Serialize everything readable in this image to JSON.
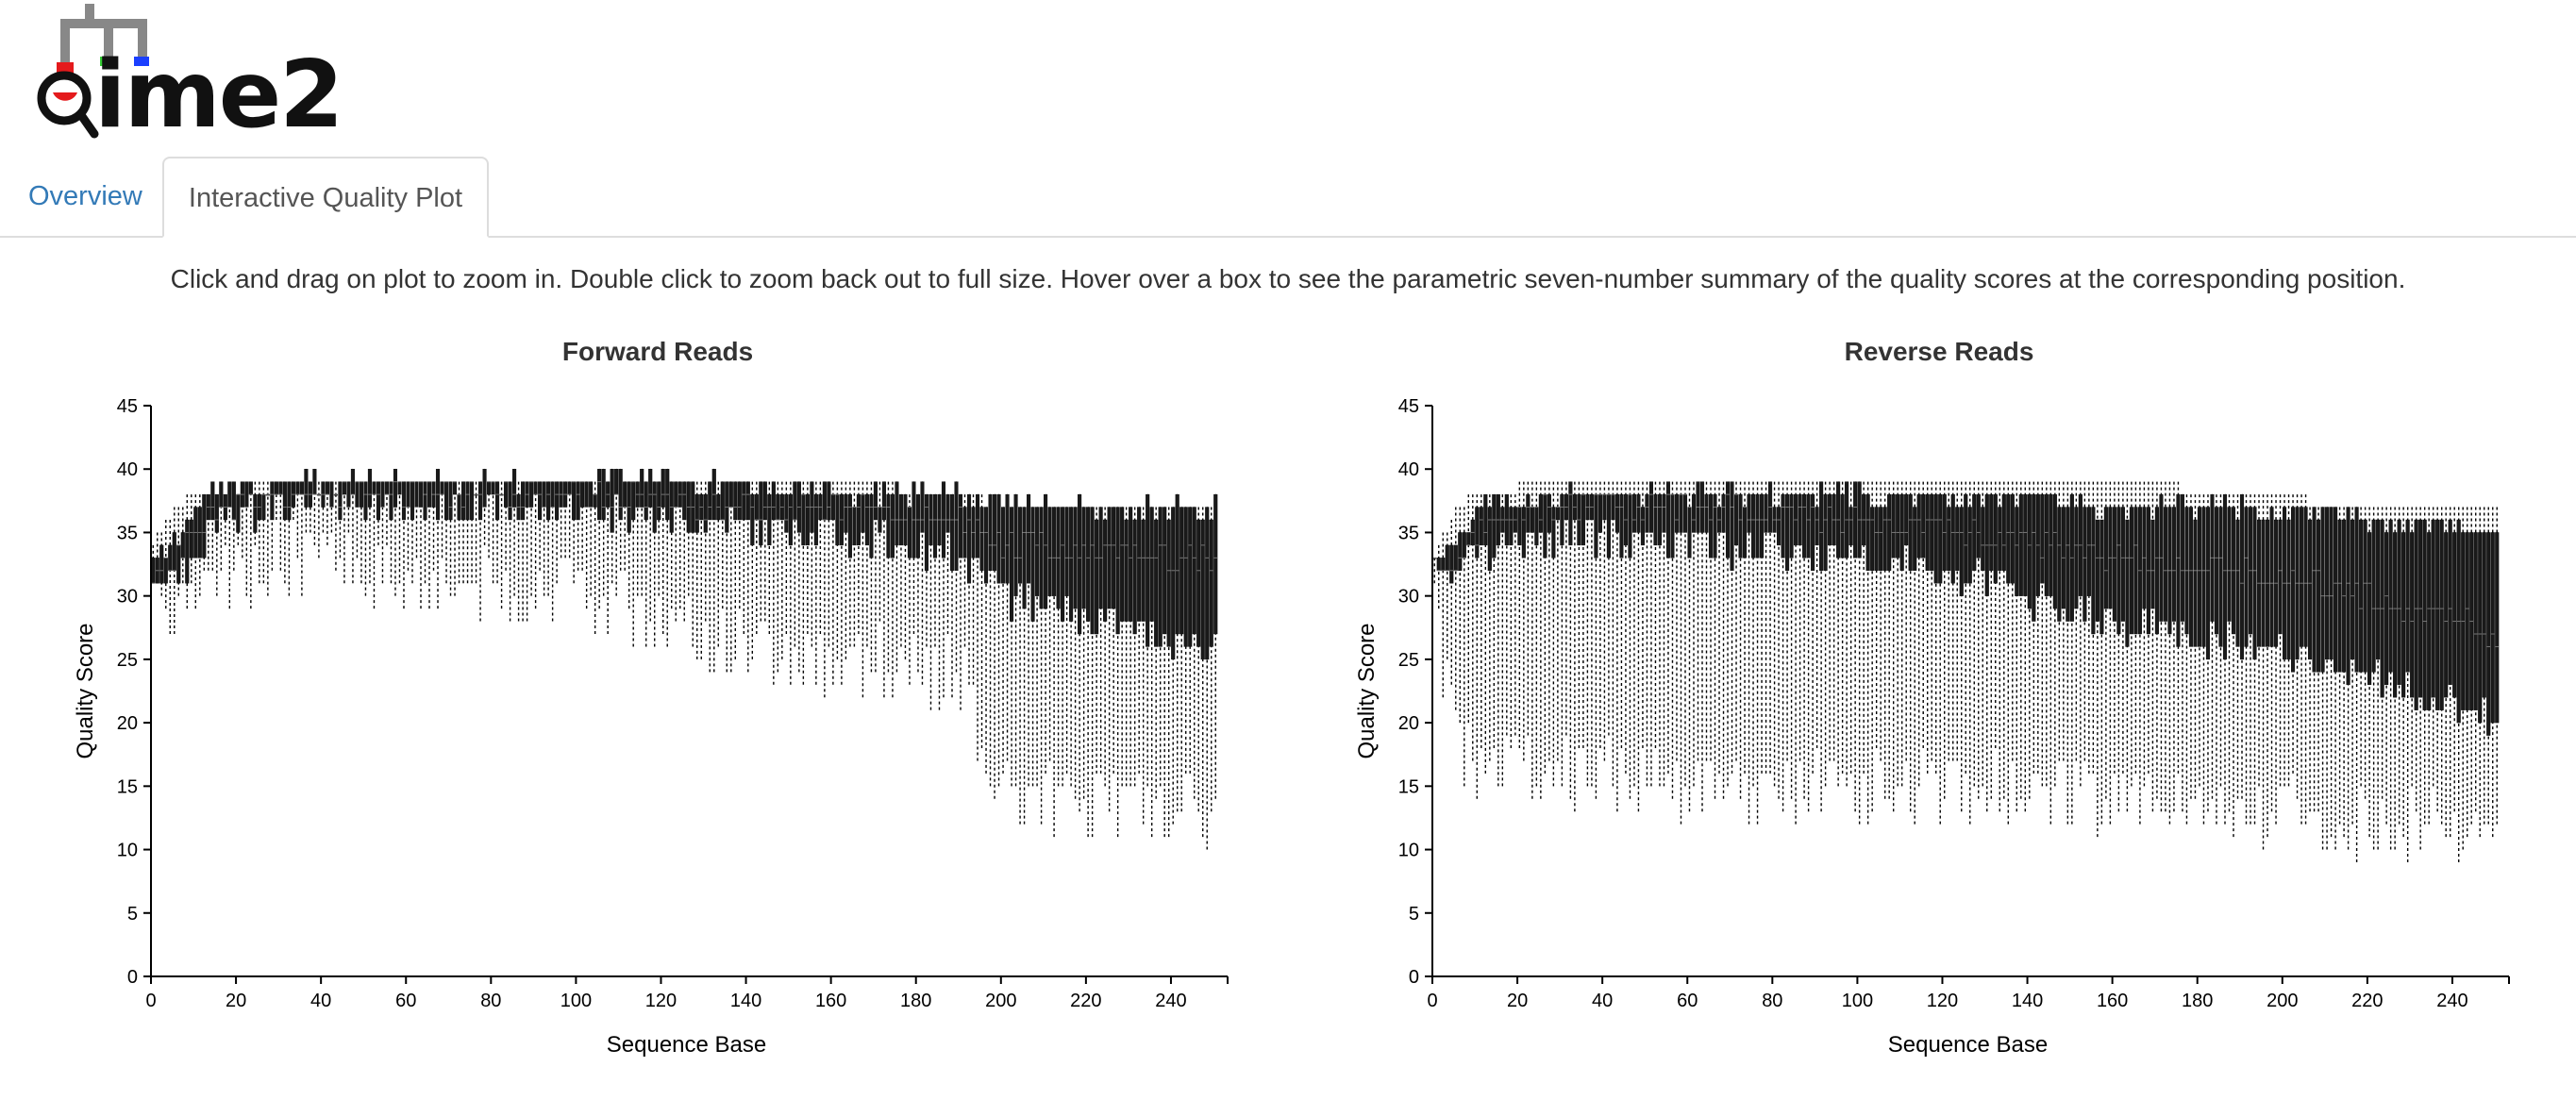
{
  "app": {
    "logo_text": "qiime2"
  },
  "tabs": [
    {
      "label": "Overview",
      "active": false
    },
    {
      "label": "Interactive Quality Plot",
      "active": true
    }
  ],
  "instructions": "Click and drag on plot to zoom in. Double click to zoom back out to full size. Hover over a box to see the parametric seven-number summary of the quality scores at the corresponding position.",
  "colors": {
    "link": "#337ab7",
    "box_fill": "#1a1a1a",
    "whisker": "#000000"
  },
  "chart_data": [
    {
      "type": "boxplot",
      "title": "Forward Reads",
      "xlabel": "Sequence Base",
      "ylabel": "Quality Score",
      "xlim": [
        0,
        250
      ],
      "ylim": [
        0,
        45
      ],
      "xticks": [
        "0",
        "20",
        "40",
        "60",
        "80",
        "100",
        "120",
        "140",
        "160",
        "180",
        "200",
        "220",
        "240"
      ],
      "yticks": [
        "0",
        "5",
        "10",
        "15",
        "20",
        "25",
        "30",
        "35",
        "40",
        "45"
      ],
      "profile": [
        {
          "x": 0,
          "whisker_low": 29,
          "q1": 32,
          "median": 32,
          "q3": 33,
          "whisker_high": 34
        },
        {
          "x": 5,
          "whisker_low": 30,
          "q1": 32,
          "median": 33,
          "q3": 34,
          "whisker_high": 37
        },
        {
          "x": 10,
          "whisker_low": 30,
          "q1": 33,
          "median": 35,
          "q3": 37,
          "whisker_high": 38
        },
        {
          "x": 15,
          "whisker_low": 31,
          "q1": 36,
          "median": 37,
          "q3": 38,
          "whisker_high": 38
        },
        {
          "x": 30,
          "whisker_low": 33,
          "q1": 37,
          "median": 38,
          "q3": 39,
          "whisker_high": 39
        },
        {
          "x": 60,
          "whisker_low": 32,
          "q1": 37,
          "median": 38,
          "q3": 39,
          "whisker_high": 39
        },
        {
          "x": 100,
          "whisker_low": 30,
          "q1": 37,
          "median": 38,
          "q3": 39,
          "whisker_high": 39
        },
        {
          "x": 130,
          "whisker_low": 27,
          "q1": 36,
          "median": 37,
          "q3": 39,
          "whisker_high": 39
        },
        {
          "x": 160,
          "whisker_low": 25,
          "q1": 35,
          "median": 37,
          "q3": 38,
          "whisker_high": 39
        },
        {
          "x": 190,
          "whisker_low": 24,
          "q1": 33,
          "median": 36,
          "q3": 38,
          "whisker_high": 38
        },
        {
          "x": 200,
          "whisker_low": 14,
          "q1": 30,
          "median": 34,
          "q3": 37,
          "whisker_high": 37
        },
        {
          "x": 251,
          "whisker_low": 13,
          "q1": 26,
          "median": 33,
          "q3": 37,
          "whisker_high": 37
        }
      ]
    },
    {
      "type": "boxplot",
      "title": "Reverse Reads",
      "xlabel": "Sequence Base",
      "ylabel": "Quality Score",
      "xlim": [
        0,
        250
      ],
      "ylim": [
        0,
        45
      ],
      "xticks": [
        "0",
        "20",
        "40",
        "60",
        "80",
        "100",
        "120",
        "140",
        "160",
        "180",
        "200",
        "220",
        "240"
      ],
      "yticks": [
        "0",
        "5",
        "10",
        "15",
        "20",
        "25",
        "30",
        "35",
        "40",
        "45"
      ],
      "profile": [
        {
          "x": 0,
          "whisker_low": 29,
          "q1": 32,
          "median": 32,
          "q3": 33,
          "whisker_high": 33
        },
        {
          "x": 5,
          "whisker_low": 18,
          "q1": 32,
          "median": 33,
          "q3": 34,
          "whisker_high": 37
        },
        {
          "x": 10,
          "whisker_low": 17,
          "q1": 33,
          "median": 35,
          "q3": 37,
          "whisker_high": 38
        },
        {
          "x": 30,
          "whisker_low": 16,
          "q1": 35,
          "median": 37,
          "q3": 38,
          "whisker_high": 39
        },
        {
          "x": 60,
          "whisker_low": 15,
          "q1": 34,
          "median": 37,
          "q3": 38,
          "whisker_high": 39
        },
        {
          "x": 100,
          "whisker_low": 15,
          "q1": 33,
          "median": 36,
          "q3": 38,
          "whisker_high": 39
        },
        {
          "x": 130,
          "whisker_low": 15,
          "q1": 31,
          "median": 35,
          "q3": 38,
          "whisker_high": 39
        },
        {
          "x": 160,
          "whisker_low": 14,
          "q1": 28,
          "median": 33,
          "q3": 37,
          "whisker_high": 39
        },
        {
          "x": 190,
          "whisker_low": 13,
          "q1": 26,
          "median": 32,
          "q3": 37,
          "whisker_high": 38
        },
        {
          "x": 220,
          "whisker_low": 12,
          "q1": 24,
          "median": 30,
          "q3": 36,
          "whisker_high": 37
        },
        {
          "x": 251,
          "whisker_low": 12,
          "q1": 20,
          "median": 27,
          "q3": 35,
          "whisker_high": 37
        }
      ]
    }
  ]
}
